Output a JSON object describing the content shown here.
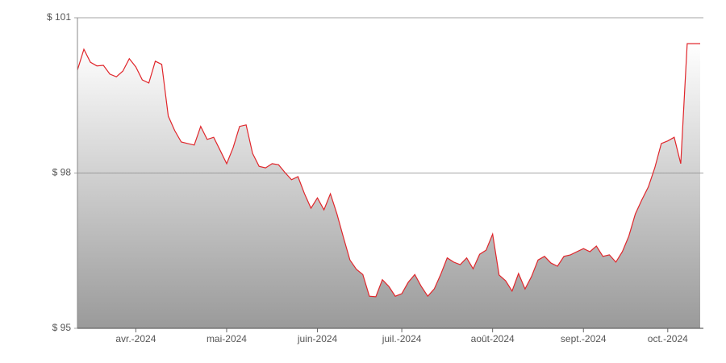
{
  "chart_data": {
    "type": "area",
    "categories": [
      null,
      null,
      null,
      null,
      null,
      null,
      null,
      null,
      null,
      "avr.-2024",
      null,
      null,
      null,
      null,
      null,
      null,
      null,
      null,
      null,
      null,
      null,
      null,
      null,
      "mai-2024",
      null,
      null,
      null,
      null,
      null,
      null,
      null,
      null,
      null,
      null,
      null,
      null,
      null,
      "juin-2024",
      null,
      null,
      null,
      null,
      null,
      null,
      null,
      null,
      null,
      null,
      null,
      null,
      "juil.-2024",
      null,
      null,
      null,
      null,
      null,
      null,
      null,
      null,
      null,
      null,
      null,
      null,
      null,
      "août-2024",
      null,
      null,
      null,
      null,
      null,
      null,
      null,
      null,
      null,
      null,
      null,
      null,
      null,
      "sept.-2024",
      null,
      null,
      null,
      null,
      null,
      null,
      null,
      null,
      null,
      null,
      null,
      null,
      "oct.-2024",
      null,
      null,
      null,
      null,
      null
    ],
    "values": [
      99.99,
      100.39,
      100.14,
      100.07,
      100.08,
      99.91,
      99.86,
      99.97,
      100.21,
      100.05,
      99.8,
      99.74,
      100.16,
      100.1,
      99.1,
      98.82,
      98.6,
      98.57,
      98.54,
      98.9,
      98.65,
      98.69,
      98.44,
      98.18,
      98.49,
      98.9,
      98.93,
      98.38,
      98.13,
      98.1,
      98.18,
      98.16,
      98.01,
      97.87,
      97.93,
      97.6,
      97.32,
      97.52,
      97.29,
      97.6,
      97.21,
      96.76,
      96.32,
      96.14,
      96.04,
      95.62,
      95.61,
      95.94,
      95.81,
      95.62,
      95.67,
      95.89,
      96.04,
      95.81,
      95.62,
      95.76,
      96.04,
      96.36,
      96.28,
      96.23,
      96.36,
      96.15,
      96.43,
      96.51,
      96.82,
      96.03,
      95.92,
      95.72,
      96.06,
      95.76,
      96.0,
      96.32,
      96.39,
      96.26,
      96.2,
      96.39,
      96.42,
      96.48,
      96.54,
      96.48,
      96.59,
      96.39,
      96.42,
      96.28,
      96.48,
      96.78,
      97.21,
      97.48,
      97.73,
      98.1,
      98.57,
      98.62,
      98.69,
      98.18,
      100.5,
      100.5,
      100.5
    ],
    "color": "#e0262b",
    "ylim": [
      95,
      101
    ],
    "yticks": [
      {
        "value": 95,
        "label": "$ 95"
      },
      {
        "value": 98,
        "label": "$ 98"
      },
      {
        "value": 101,
        "label": "$ 101"
      }
    ],
    "grid": true
  }
}
